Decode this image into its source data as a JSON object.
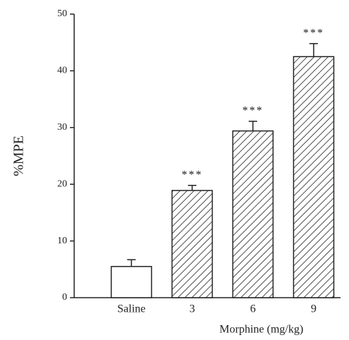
{
  "chart_data": {
    "type": "bar",
    "y_label": "%MPE",
    "x_label": "Morphine (mg/kg)",
    "categories": [
      "Saline",
      "3",
      "6",
      "9"
    ],
    "values": [
      5.5,
      18.9,
      29.4,
      42.5
    ],
    "errors": [
      1.2,
      0.9,
      1.7,
      2.3
    ],
    "annotations": [
      null,
      "***",
      "***",
      "***"
    ],
    "hatch": [
      false,
      true,
      true,
      true
    ],
    "color": "#222222",
    "ylim": [
      0,
      50
    ],
    "yticks": [
      0,
      10,
      20,
      30,
      40,
      50
    ]
  }
}
